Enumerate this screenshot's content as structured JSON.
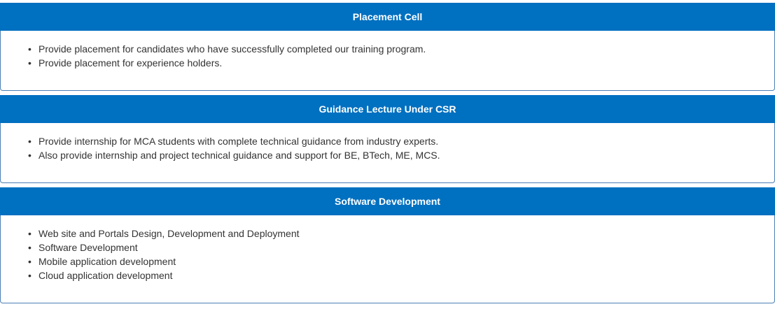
{
  "sections": [
    {
      "title": "Placement Cell",
      "items": [
        "Provide placement for candidates who have successfully completed our training program.",
        "Provide placement for experience holders."
      ]
    },
    {
      "title": "Guidance Lecture Under CSR",
      "items": [
        "Provide internship for MCA students with complete technical guidance from industry experts.",
        "Also provide internship and project technical guidance and support for BE, BTech, ME, MCS."
      ]
    },
    {
      "title": "Software Development",
      "items": [
        "Web site and Portals Design, Development and Deployment",
        "Software Development",
        "Mobile application development",
        "Cloud application development"
      ]
    }
  ],
  "colors": {
    "header_bg": "#0070c0",
    "header_text": "#ffffff",
    "body_text": "#333333",
    "border": "#4a7fb5"
  }
}
